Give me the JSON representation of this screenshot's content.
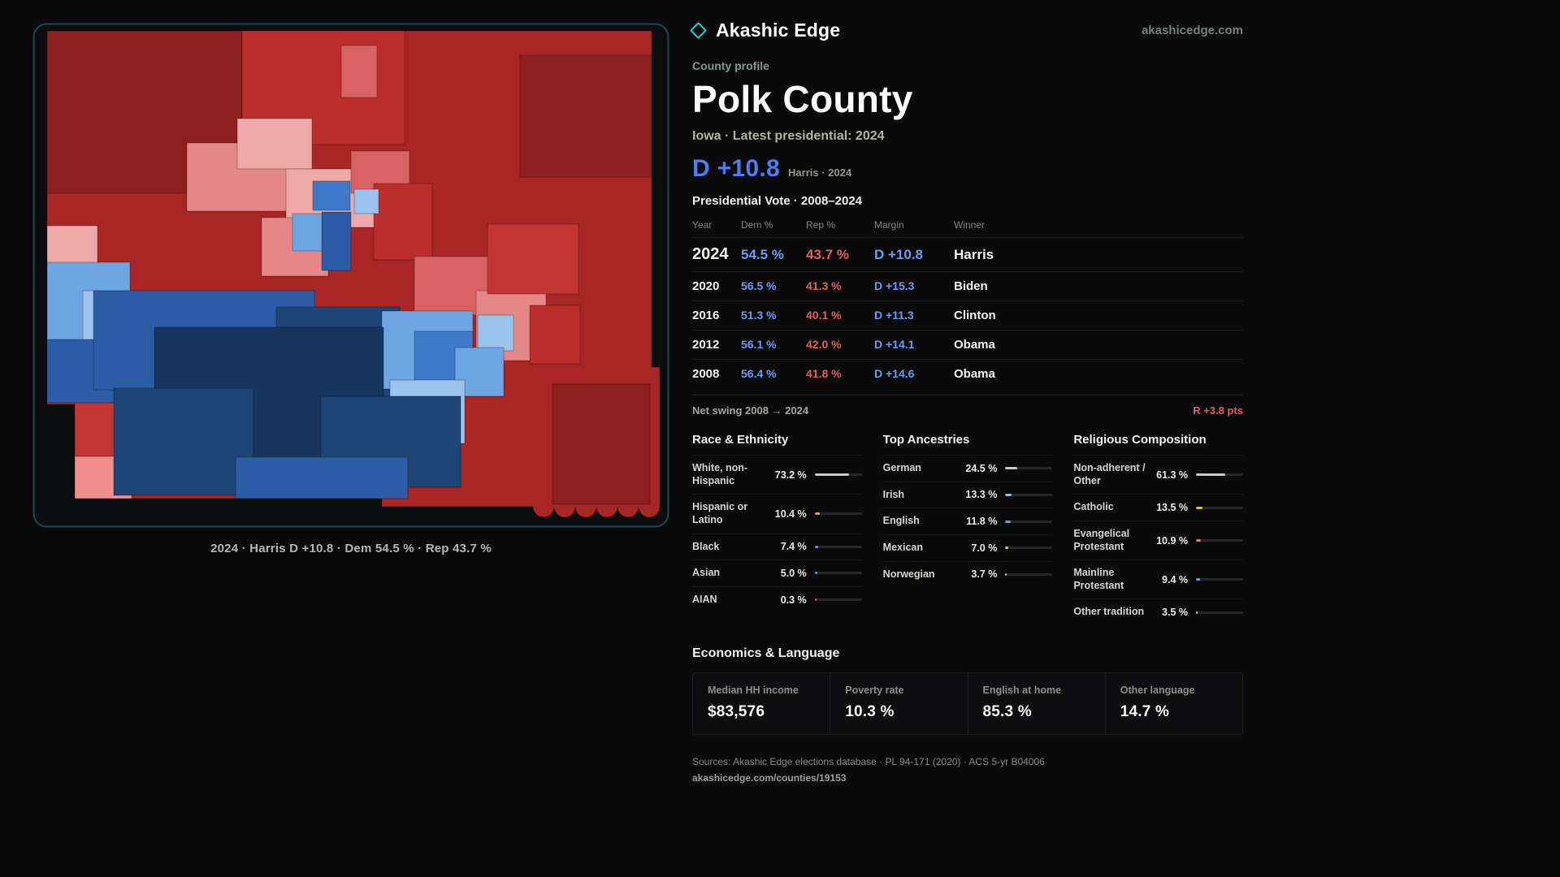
{
  "colors": {
    "accent": "#2ec9c9",
    "map_frame": "#1d4a4a",
    "dem_text": "#6c9cf2",
    "rep_text": "#e25f5f"
  },
  "brand": {
    "name": "Akashic Edge",
    "domain": "akashicedge.com"
  },
  "profile": {
    "kicker": "County profile",
    "title": "Polk County",
    "subtitle": "Iowa · Latest presidential: 2024",
    "margin": "D +10.8",
    "margin_context": "Harris · 2024"
  },
  "map": {
    "caption": "2024 · Harris D +10.8 · Dem 54.5 % · Rep 43.7 %",
    "palette": {
      "rep_base": "#a82626",
      "rep_dark": "#8e1f1f",
      "rep_mid": "#bb2e2e",
      "rep_bright": "#c43636",
      "rep_soft": "#d96262",
      "rep_light": "#e68787",
      "rep_pale": "#efa9a9",
      "salmon": "#f08d8d",
      "dem_navy": "#17365e",
      "dem_deep": "#1f4476",
      "dem_mid": "#2c5ca6",
      "dem_bright": "#3f79c9",
      "dem_light": "#6ea6e4",
      "dem_pale": "#9ac3ee"
    }
  },
  "vote_table": {
    "title": "Presidential Vote · 2008–2024",
    "columns": {
      "year": "Year",
      "dem": "Dem %",
      "rep": "Rep %",
      "margin": "Margin",
      "winner": "Winner"
    },
    "rows": [
      {
        "year": "2024",
        "dem": "54.5 %",
        "rep": "43.7 %",
        "margin": "D +10.8",
        "winner": "Harris"
      },
      {
        "year": "2020",
        "dem": "56.5 %",
        "rep": "41.3 %",
        "margin": "D +15.3",
        "winner": "Biden"
      },
      {
        "year": "2016",
        "dem": "51.3 %",
        "rep": "40.1 %",
        "margin": "D +11.3",
        "winner": "Clinton"
      },
      {
        "year": "2012",
        "dem": "56.1 %",
        "rep": "42.0 %",
        "margin": "D +14.1",
        "winner": "Obama"
      },
      {
        "year": "2008",
        "dem": "56.4 %",
        "rep": "41.8 %",
        "margin": "D +14.6",
        "winner": "Obama"
      }
    ]
  },
  "swing": {
    "label": "Net swing 2008 → 2024",
    "value": "R +3.8 pts"
  },
  "demographics": [
    {
      "title": "Race & Ethnicity",
      "rows": [
        {
          "label": "White, non-Hispanic",
          "value": "73.2 %",
          "pct": 73.2,
          "color": "#c3c9d1"
        },
        {
          "label": "Hispanic or Latino",
          "value": "10.4 %",
          "pct": 10.4,
          "color": "#e2a43c"
        },
        {
          "label": "Black",
          "value": "7.4 %",
          "pct": 7.4,
          "color": "#9a7de0"
        },
        {
          "label": "Asian",
          "value": "5.0 %",
          "pct": 5.0,
          "color": "#5aa9dd"
        },
        {
          "label": "AIAN",
          "value": "0.3 %",
          "pct": 0.3,
          "color": "#e06c3a"
        }
      ]
    },
    {
      "title": "Top Ancestries",
      "rows": [
        {
          "label": "German",
          "value": "24.5 %",
          "pct": 24.5,
          "color": "#c3c9d1"
        },
        {
          "label": "Irish",
          "value": "13.3 %",
          "pct": 13.3,
          "color": "#93b8e4"
        },
        {
          "label": "English",
          "value": "11.8 %",
          "pct": 11.8,
          "color": "#7591dc"
        },
        {
          "label": "Mexican",
          "value": "7.0 %",
          "pct": 7.0,
          "color": "#e2c43c"
        },
        {
          "label": "Norwegian",
          "value": "3.7 %",
          "pct": 3.7,
          "color": "#c3c9d1"
        }
      ]
    },
    {
      "title": "Religious Composition",
      "rows": [
        {
          "label": "Non-adherent / Other",
          "value": "61.3 %",
          "pct": 61.3,
          "color": "#c3c9d1"
        },
        {
          "label": "Catholic",
          "value": "13.5 %",
          "pct": 13.5,
          "color": "#e2c43c"
        },
        {
          "label": "Evangelical Protestant",
          "value": "10.9 %",
          "pct": 10.9,
          "color": "#e07a7a"
        },
        {
          "label": "Mainline Protestant",
          "value": "9.4 %",
          "pct": 9.4,
          "color": "#6f9fe8"
        },
        {
          "label": "Other tradition",
          "value": "3.5 %",
          "pct": 3.5,
          "color": "#c3c9d1"
        }
      ]
    }
  ],
  "economics": {
    "title": "Economics & Language",
    "cards": [
      {
        "label": "Median HH income",
        "value": "$83,576"
      },
      {
        "label": "Poverty rate",
        "value": "10.3 %"
      },
      {
        "label": "English at home",
        "value": "85.3 %"
      },
      {
        "label": "Other language",
        "value": "14.7 %"
      }
    ]
  },
  "footer": {
    "sources": "Sources: Akashic Edge elections database · PL 94-171 (2020) · ACS 5-yr B04006",
    "permalink": "akashicedge.com/counties/19153"
  }
}
